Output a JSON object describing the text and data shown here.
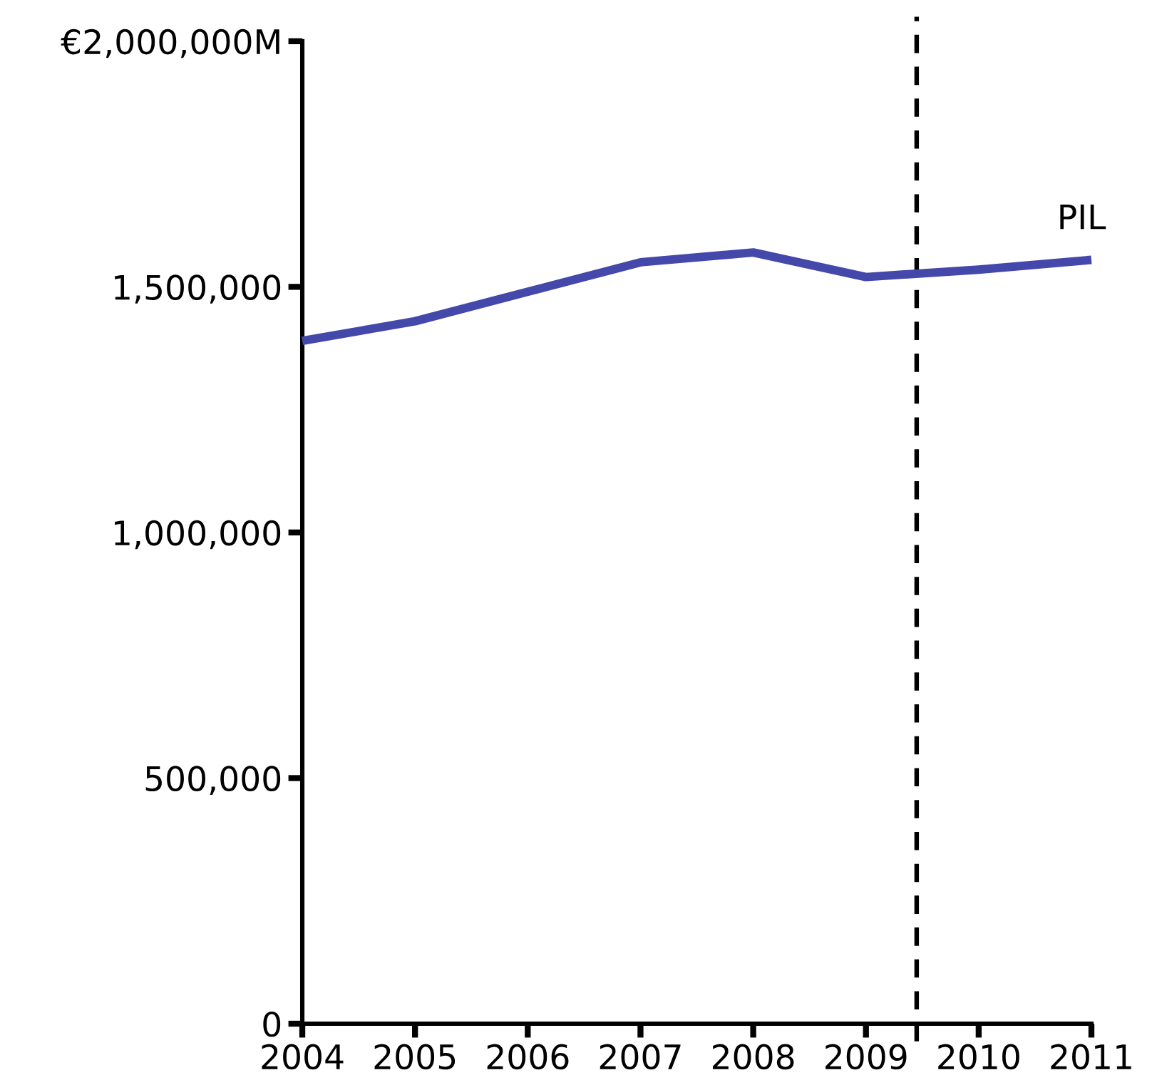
{
  "chart_data": {
    "type": "line",
    "x": [
      2004,
      2005,
      2006,
      2007,
      2008,
      2009,
      2010,
      2011
    ],
    "series": [
      {
        "name": "PIL",
        "color": "#4448aa",
        "values": [
          1390000,
          1430000,
          1490000,
          1550000,
          1570000,
          1520000,
          1535000,
          1555000
        ]
      }
    ],
    "xlim": [
      2004,
      2011
    ],
    "xticks": [
      2004,
      2005,
      2006,
      2007,
      2008,
      2009,
      2010,
      2011
    ],
    "ylim": [
      0,
      2000000
    ],
    "yticks": [
      0,
      {
        "value": 500000,
        "label": "500,000"
      },
      {
        "value": 1000000,
        "label": "1,000,000"
      },
      {
        "value": 1500000,
        "label": "1,500,000"
      },
      {
        "value": 2000000,
        "label": "€2,000,000M"
      }
    ],
    "ref_lines": [
      {
        "axis": "x",
        "value": 2009.45,
        "color": "#000000",
        "line_style": "dashed"
      }
    ],
    "line_style": "solid"
  }
}
